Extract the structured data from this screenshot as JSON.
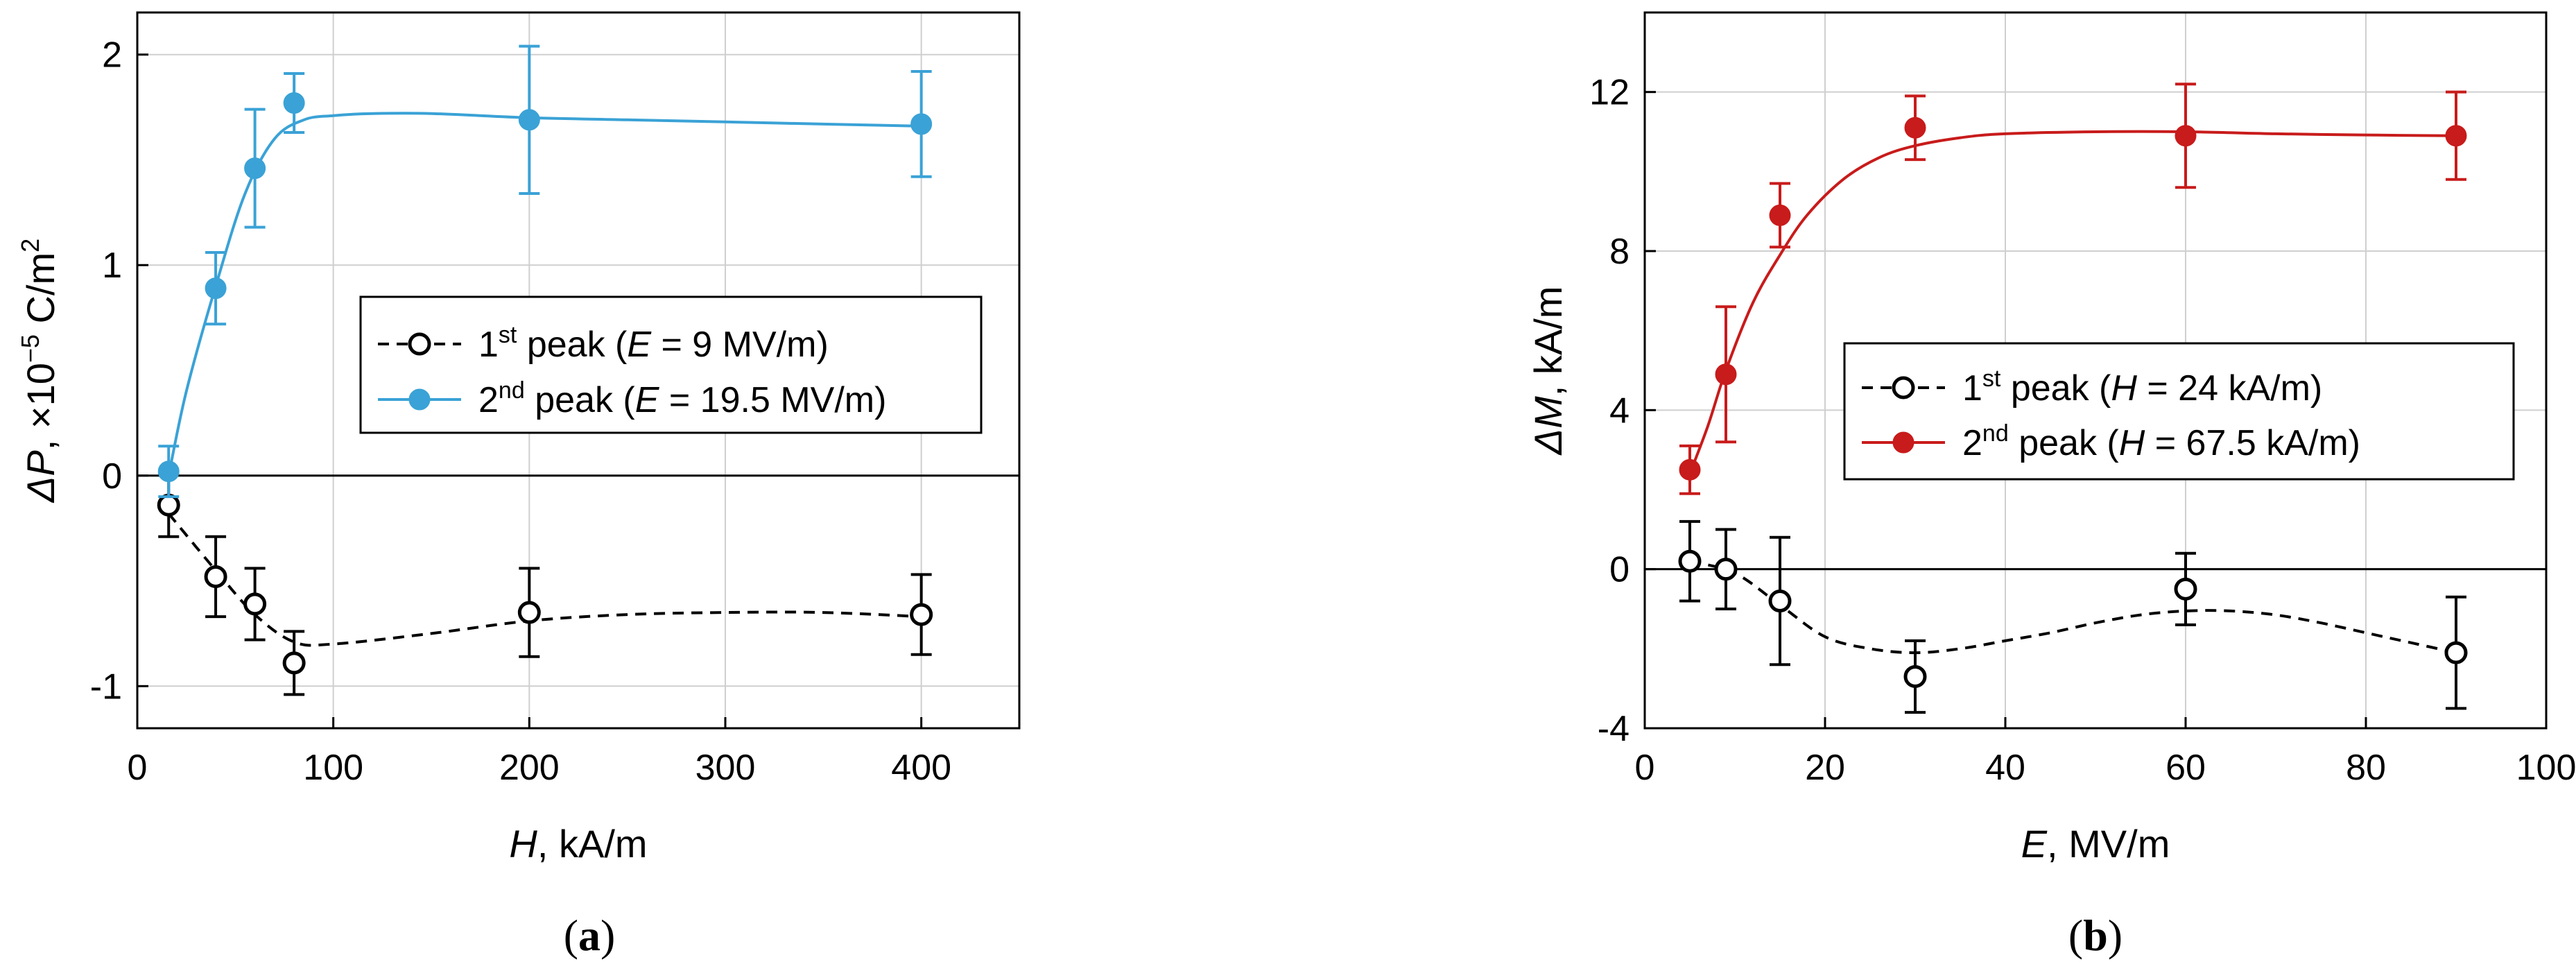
{
  "chart_data": [
    {
      "type": "scatter",
      "panel_label": "(a)",
      "xlabel": {
        "var": "H",
        "unit": ", kA/m"
      },
      "ylabel": {
        "var": "ΔP",
        "unit": ", ×10",
        "exp": "−5",
        "unit2": " C/m",
        "exp2": "2"
      },
      "xlim": [
        0,
        450
      ],
      "ylim": [
        -1.2,
        2.2
      ],
      "xticks": [
        0,
        100,
        200,
        300,
        400
      ],
      "yticks": [
        -1,
        0,
        1,
        2
      ],
      "xtick_labels": [
        "0",
        "100",
        "200",
        "300",
        "400"
      ],
      "ytick_labels": [
        "-1",
        "0",
        "1",
        "2"
      ],
      "grid": true,
      "zero_line": true,
      "legend_position": "center-right",
      "series": [
        {
          "name": "1st peak",
          "legend": {
            "pre": "1",
            "sup": "st",
            "mid": " peak (",
            "var": "E",
            "post": " = 9 MV/m)"
          },
          "marker": "open-circle",
          "line": "dashed",
          "color": "#000000",
          "x": [
            16,
            40,
            60,
            80,
            200,
            400
          ],
          "y": [
            -0.14,
            -0.48,
            -0.61,
            -0.89,
            -0.65,
            -0.66
          ],
          "err": [
            0.15,
            0.19,
            0.17,
            0.15,
            0.21,
            0.19
          ],
          "fit_x": [
            16,
            40,
            60,
            80,
            100,
            150,
            200,
            250,
            300,
            350,
            400
          ],
          "fit_y": [
            -0.18,
            -0.45,
            -0.66,
            -0.79,
            -0.8,
            -0.75,
            -0.69,
            -0.66,
            -0.65,
            -0.65,
            -0.67
          ]
        },
        {
          "name": "2nd peak",
          "legend": {
            "pre": "2",
            "sup": "nd",
            "mid": " peak (",
            "var": "E",
            "post": " = 19.5 MV/m)"
          },
          "marker": "filled-circle",
          "line": "solid",
          "color": "#3AA2D6",
          "x": [
            16,
            40,
            60,
            80,
            200,
            400
          ],
          "y": [
            0.02,
            0.89,
            1.46,
            1.77,
            1.69,
            1.67
          ],
          "err": [
            0.12,
            0.17,
            0.28,
            0.14,
            0.35,
            0.25
          ],
          "fit_x": [
            16,
            25,
            40,
            55,
            70,
            85,
            100,
            120,
            150,
            200,
            250,
            300,
            350,
            400
          ],
          "fit_y": [
            0.0,
            0.4,
            0.9,
            1.34,
            1.6,
            1.69,
            1.71,
            1.72,
            1.72,
            1.7,
            1.69,
            1.68,
            1.67,
            1.66
          ]
        }
      ]
    },
    {
      "type": "scatter",
      "panel_label": "(b)",
      "xlabel": {
        "var": "E",
        "unit": ", MV/m"
      },
      "ylabel": {
        "var": "ΔM",
        "unit": ", kA/m"
      },
      "xlim": [
        0,
        100
      ],
      "ylim": [
        -4,
        14
      ],
      "xticks": [
        0,
        20,
        40,
        60,
        80,
        100
      ],
      "yticks": [
        -4,
        0,
        4,
        8,
        12
      ],
      "xtick_labels": [
        "0",
        "20",
        "40",
        "60",
        "80",
        "100"
      ],
      "ytick_labels": [
        "-4",
        "0",
        "4",
        "8",
        "12"
      ],
      "grid": true,
      "zero_line": true,
      "legend_position": "center-right",
      "series": [
        {
          "name": "1st peak",
          "legend": {
            "pre": "1",
            "sup": "st",
            "mid": " peak (",
            "var": "H",
            "post": " = 24 kA/m)"
          },
          "marker": "open-circle",
          "line": "dashed",
          "color": "#000000",
          "x": [
            5,
            9,
            15,
            30,
            60,
            90
          ],
          "y": [
            0.2,
            0.0,
            -0.8,
            -2.7,
            -0.5,
            -2.1
          ],
          "err": [
            1.0,
            1.0,
            1.6,
            0.9,
            0.9,
            1.4
          ],
          "fit_x": [
            5,
            10,
            15,
            20,
            25,
            30,
            35,
            40,
            45,
            50,
            55,
            60,
            65,
            70,
            75,
            80,
            85,
            90
          ],
          "fit_y": [
            0.2,
            -0.1,
            -0.9,
            -1.7,
            -2.0,
            -2.1,
            -2.0,
            -1.8,
            -1.6,
            -1.35,
            -1.15,
            -1.05,
            -1.05,
            -1.15,
            -1.35,
            -1.6,
            -1.85,
            -2.1
          ]
        },
        {
          "name": "2nd peak",
          "legend": {
            "pre": "2",
            "sup": "nd",
            "mid": " peak (",
            "var": "H",
            "post": " = 67.5 kA/m)"
          },
          "marker": "filled-circle",
          "line": "solid",
          "color": "#C81B1B",
          "x": [
            5,
            9,
            15,
            30,
            60,
            90
          ],
          "y": [
            2.5,
            4.9,
            8.9,
            11.1,
            10.9,
            10.9
          ],
          "err": [
            0.6,
            1.7,
            0.8,
            0.8,
            1.3,
            1.1
          ],
          "fit_x": [
            5,
            7,
            9,
            12,
            15,
            18,
            22,
            26,
            30,
            35,
            40,
            50,
            60,
            70,
            80,
            90
          ],
          "fit_y": [
            2.4,
            3.6,
            5.0,
            6.7,
            7.9,
            8.9,
            9.8,
            10.35,
            10.65,
            10.85,
            10.95,
            11.0,
            11.0,
            10.95,
            10.92,
            10.9
          ]
        }
      ]
    }
  ]
}
